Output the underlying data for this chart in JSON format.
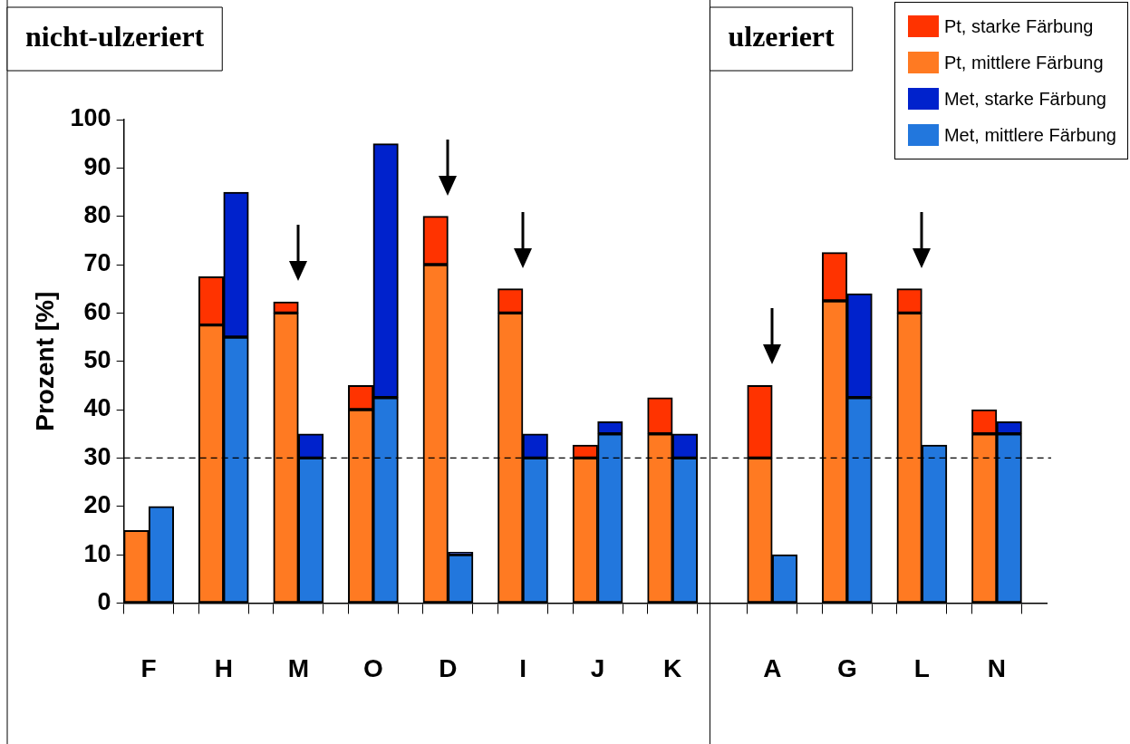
{
  "chart_data": {
    "type": "bar",
    "stacked": true,
    "ylabel": "Prozent [%]",
    "categories": [
      "F",
      null,
      null,
      "H",
      null,
      null,
      "M",
      null,
      null,
      "O",
      null,
      null,
      "D",
      null,
      null,
      "I",
      null,
      null,
      "J",
      null,
      null,
      "K",
      null,
      null,
      null,
      "A",
      null,
      null,
      "G",
      null,
      null,
      "L",
      null,
      null,
      "N",
      null,
      null
    ],
    "series": [
      {
        "name": "Pt, mittlere Färbung",
        "color": "#ff7a22",
        "values": [
          15,
          null,
          null,
          57.5,
          null,
          null,
          60,
          null,
          null,
          40,
          null,
          null,
          70,
          null,
          null,
          60,
          null,
          null,
          30,
          null,
          null,
          35,
          null,
          null,
          null,
          30,
          null,
          null,
          62.5,
          null,
          null,
          60,
          null,
          null,
          35,
          null,
          null
        ]
      },
      {
        "name": "Pt, starke Färbung",
        "color": "#ff3300",
        "values": [
          null,
          null,
          null,
          10,
          null,
          null,
          2.3,
          null,
          null,
          5,
          null,
          null,
          10,
          null,
          null,
          5,
          null,
          null,
          2.7,
          null,
          null,
          7.5,
          null,
          null,
          null,
          15,
          null,
          null,
          10,
          null,
          null,
          5,
          null,
          null,
          5,
          null,
          null
        ]
      },
      {
        "name": "Met, mittlere Färbung",
        "color": "#2277dd",
        "values": [
          null,
          20,
          null,
          null,
          55,
          null,
          null,
          30,
          null,
          null,
          42.5,
          null,
          null,
          10,
          null,
          null,
          30,
          null,
          null,
          35,
          null,
          null,
          30,
          null,
          null,
          null,
          10,
          null,
          null,
          42.5,
          null,
          null,
          32.7,
          null,
          null,
          35,
          null
        ]
      },
      {
        "name": "Met, starke Färbung",
        "color": "#0022cc",
        "values": [
          null,
          null,
          null,
          null,
          30,
          null,
          null,
          5,
          null,
          null,
          52.5,
          null,
          null,
          0.5,
          null,
          null,
          5,
          null,
          null,
          2.5,
          null,
          null,
          5,
          null,
          null,
          null,
          null,
          null,
          null,
          21.5,
          null,
          null,
          null,
          null,
          null,
          2.5,
          null
        ]
      }
    ],
    "ylim": [
      0,
      100
    ],
    "yticks": [
      0,
      10,
      20,
      30,
      40,
      50,
      60,
      70,
      80,
      90,
      100
    ],
    "legend": "top right",
    "ref_lines": [
      {
        "axis": "y",
        "value": 30,
        "line_style": "dashed",
        "color": "#000000"
      }
    ],
    "annotations": [
      "nicht-ulzeriert",
      "ulzeriert"
    ]
  }
}
